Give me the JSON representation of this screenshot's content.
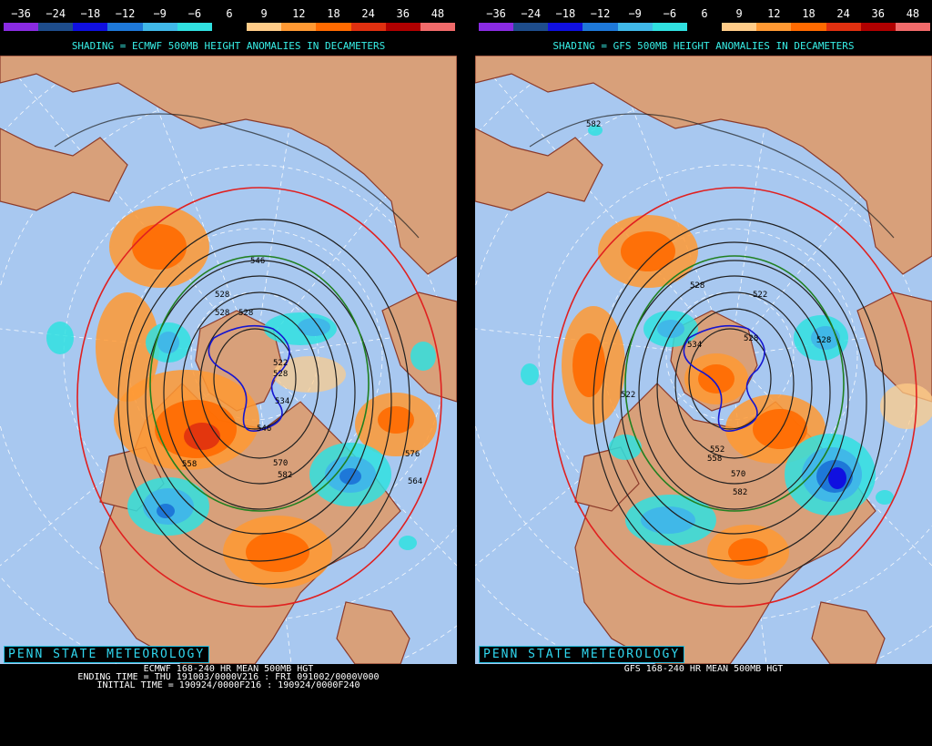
{
  "scale": {
    "labels": [
      "−36",
      "−24",
      "−18",
      "−12",
      "−9",
      "−6",
      "6",
      "9",
      "12",
      "18",
      "24",
      "36",
      "48"
    ],
    "colors": [
      "#8a2be2",
      "#1e4d8c",
      "#1010e0",
      "#1e78d8",
      "#40b8e8",
      "#30e0e0",
      "#000000",
      "#ffcc88",
      "#ff9933",
      "#ff6a00",
      "#e03010",
      "#b00000",
      "#f06a6a"
    ]
  },
  "colors": {
    "ocean": "#a8c8f0",
    "land": "#d8a07a",
    "border": "#8b3a2a",
    "contour": "#202020",
    "highlight_red": "#e02020",
    "highlight_green": "#208020",
    "highlight_blue": "#1515d0"
  },
  "panels": [
    {
      "shading_title": "SHADING = ECMWF 500MB HEIGHT ANOMALIES IN DECAMETERS",
      "psu_label": "PENN STATE METEOROLOGY",
      "caption_lines": [
        "ECMWF 168-240 HR MEAN 500MB HGT",
        "ENDING TIME = THU 191003/0000V216 : FRI 091002/0000V000",
        "INITIAL TIME = 190924/0000F216 : 190924/0000F240"
      ],
      "contour_labels": [
        "546",
        "528",
        "528",
        "528",
        "522",
        "528",
        "534",
        "546",
        "558",
        "570",
        "582",
        "576",
        "564"
      ]
    },
    {
      "shading_title": "SHADING = GFS 500MB HEIGHT ANOMALIES IN DECAMETERS",
      "psu_label": "PENN STATE METEOROLOGY",
      "caption_lines": [
        "GFS 168-240 HR MEAN 500MB HGT"
      ],
      "contour_labels": [
        "582",
        "528",
        "522",
        "528",
        "534",
        "528",
        "522",
        "552",
        "558",
        "570",
        "582"
      ]
    }
  ]
}
